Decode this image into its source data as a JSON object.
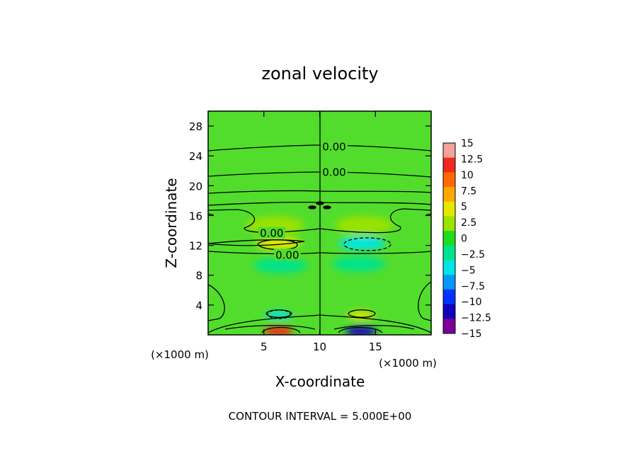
{
  "chart_data": {
    "type": "heatmap",
    "title": "zonal velocity",
    "xlabel": "X-coordinate",
    "ylabel": "Z-coordinate",
    "x_unit": "(×1000 m)",
    "y_unit": "(×1000 m)",
    "xlim": [
      0,
      20
    ],
    "ylim": [
      0,
      30
    ],
    "x_ticks": [
      5,
      10,
      15
    ],
    "y_ticks": [
      4,
      8,
      12,
      16,
      20,
      24,
      28
    ],
    "footer": "CONTOUR INTERVAL = 5.000E+00",
    "contour_labels": [
      {
        "text": "0.00",
        "x": 11.3,
        "z": 25.2
      },
      {
        "text": "0.00",
        "x": 11.3,
        "z": 21.8
      },
      {
        "text": "0.00",
        "x": 5.7,
        "z": 13.6
      },
      {
        "text": "0.00",
        "x": 7.1,
        "z": 10.7
      }
    ],
    "features": [
      {
        "x": 6.3,
        "z": 12.3,
        "rx": 2.0,
        "rz": 0.85,
        "value": 5
      },
      {
        "x": 13.8,
        "z": 12.3,
        "rx": 2.1,
        "rz": 0.9,
        "value": -4.5
      },
      {
        "x": 6.0,
        "z": 14.7,
        "rx": 2.6,
        "rz": 1.2,
        "value": 2.8
      },
      {
        "x": 14.0,
        "z": 14.7,
        "rx": 2.6,
        "rz": 1.2,
        "value": 2.5
      },
      {
        "x": 6.5,
        "z": 9.3,
        "rx": 2.4,
        "rz": 1.0,
        "value": -2.0
      },
      {
        "x": 13.5,
        "z": 9.5,
        "rx": 2.4,
        "rz": 1.0,
        "value": -1.5
      },
      {
        "x": 6.3,
        "z": 2.6,
        "rx": 1.2,
        "rz": 0.55,
        "value": -4.5
      },
      {
        "x": 13.7,
        "z": 2.6,
        "rx": 1.2,
        "rz": 0.55,
        "value": 5.5
      },
      {
        "x": 6.3,
        "z": 0.45,
        "rx": 1.3,
        "rz": 0.7,
        "value": 13
      },
      {
        "x": 13.7,
        "z": 0.45,
        "rx": 1.4,
        "rz": 0.7,
        "value": -13
      }
    ],
    "colorbar": {
      "labels": [
        "15",
        "12.5",
        "10",
        "7.5",
        "5",
        "2.5",
        "0",
        "−2.5",
        "−5",
        "−7.5",
        "−10",
        "−12.5",
        "−15"
      ],
      "colors": [
        "#f4a29a",
        "#ee2b1e",
        "#ff6a00",
        "#ffa800",
        "#e6e600",
        "#9ae200",
        "#1edc1e",
        "#00e38c",
        "#00e5e5",
        "#0099ff",
        "#0033ff",
        "#1200bb",
        "#7a0099"
      ]
    }
  }
}
